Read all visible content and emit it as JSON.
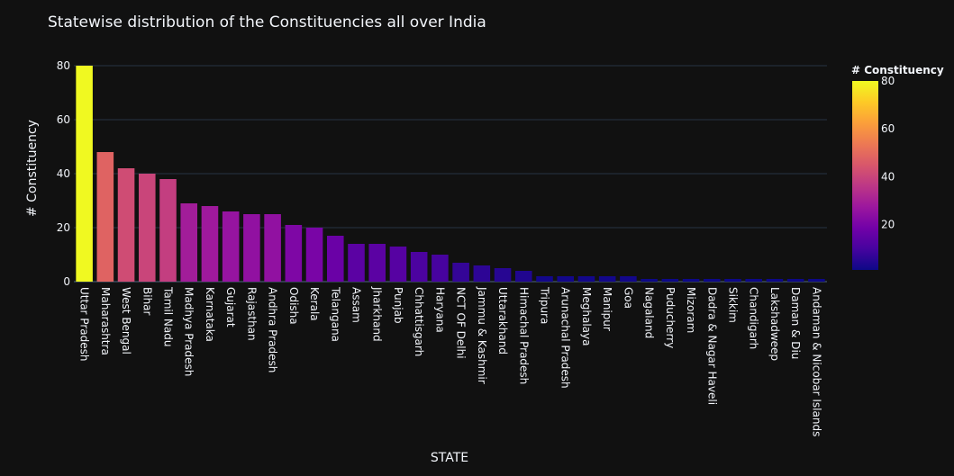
{
  "chart_data": {
    "type": "bar",
    "title": "Statewise distribution of the Constituencies all over India",
    "xlabel": "STATE",
    "ylabel": "# Constituency",
    "ylim": [
      0,
      80
    ],
    "yticks": [
      0,
      20,
      40,
      60,
      80
    ],
    "grid": true,
    "colorbar": {
      "title": "# Constituency",
      "range": [
        1,
        80
      ],
      "ticks": [
        20,
        40,
        60,
        80
      ],
      "placement": "right",
      "colorscale": [
        "#0d0887",
        "#46039f",
        "#7201a8",
        "#9c179e",
        "#bd3786",
        "#d8576b",
        "#ed7953",
        "#fb9f3a",
        "#fdca26",
        "#f0f921"
      ]
    },
    "categories": [
      "Uttar Pradesh",
      "Maharashtra",
      "West Bengal",
      "Bihar",
      "Tamil Nadu",
      "Madhya Pradesh",
      "Karnataka",
      "Gujarat",
      "Rajasthan",
      "Andhra Pradesh",
      "Odisha",
      "Kerala",
      "Telangana",
      "Assam",
      "Jharkhand",
      "Punjab",
      "Chhattisgarh",
      "Haryana",
      "NCT OF Delhi",
      "Jammu & Kashmir",
      "Uttarakhand",
      "Himachal Pradesh",
      "Tripura",
      "Arunachal Pradesh",
      "Meghalaya",
      "Manipur",
      "Goa",
      "Nagaland",
      "Puducherry",
      "Mizoram",
      "Dadra & Nagar Haveli",
      "Sikkim",
      "Chandigarh",
      "Lakshadweep",
      "Daman & Diu",
      "Andaman & Nicobar Islands"
    ],
    "values": [
      80,
      48,
      42,
      40,
      38,
      29,
      28,
      26,
      25,
      25,
      21,
      20,
      17,
      14,
      14,
      13,
      11,
      10,
      7,
      6,
      5,
      4,
      2,
      2,
      2,
      2,
      2,
      1,
      1,
      1,
      1,
      1,
      1,
      1,
      1,
      1
    ]
  },
  "colors": {
    "background": "#111111",
    "grid": "#283442",
    "text": "#f2f5fa",
    "axis_line": "#506784"
  }
}
